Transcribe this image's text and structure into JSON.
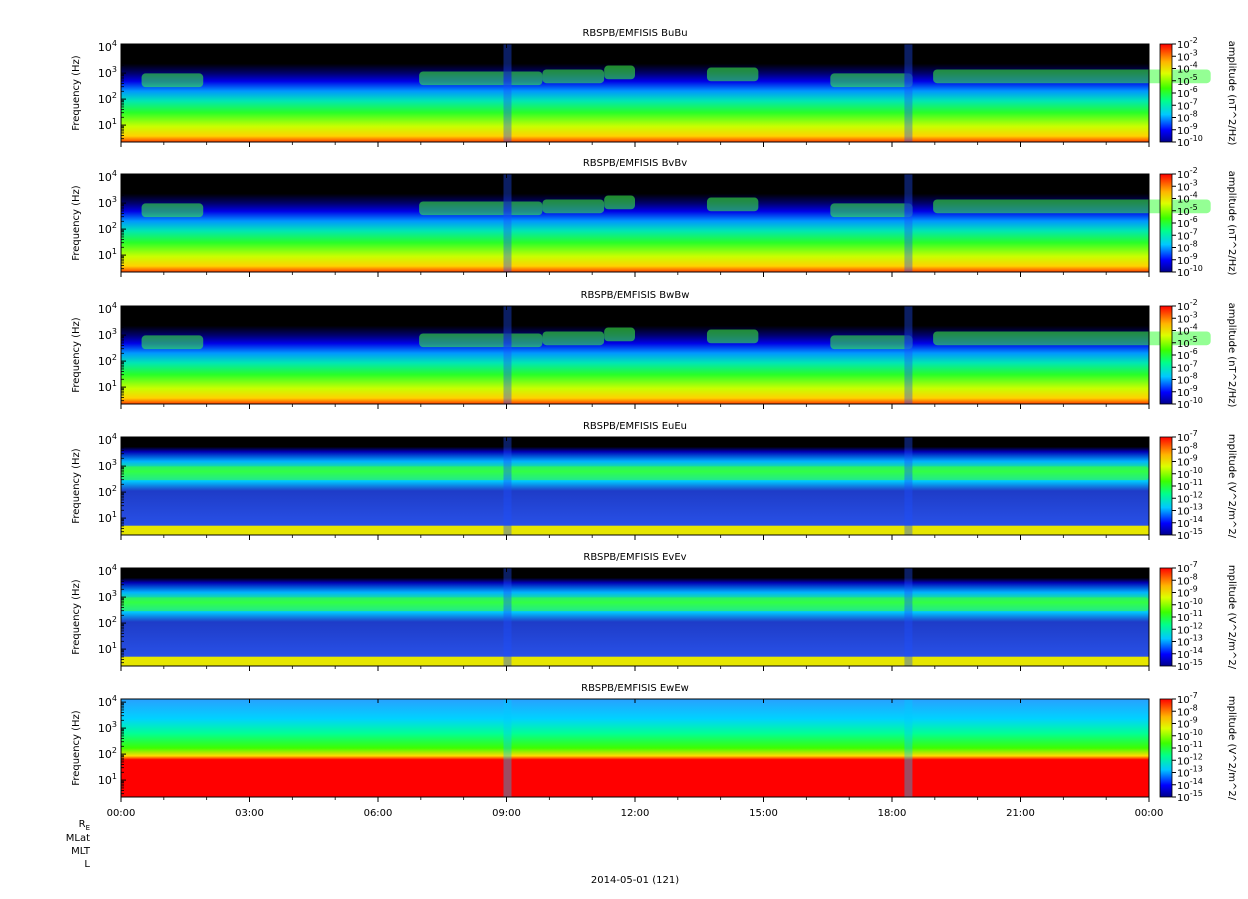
{
  "figure": {
    "date_label": "2014-05-01 (121)",
    "ephemeris_labels": [
      "R",
      "MLat",
      "MLT",
      "L"
    ],
    "ephemeris_subscript": "E"
  },
  "shared_x_ticks": [
    "00:00",
    "03:00",
    "06:00",
    "09:00",
    "12:00",
    "15:00",
    "18:00",
    "21:00",
    "00:00"
  ],
  "chart_data": [
    {
      "type": "heatmap",
      "title": "RBSPB/EMFISIS  BuBu",
      "ylabel": "Frequency (Hz)",
      "yscale": "log",
      "yticks": [
        {
          "base": "10",
          "exp": "1"
        },
        {
          "base": "10",
          "exp": "2"
        },
        {
          "base": "10",
          "exp": "3"
        },
        {
          "base": "10",
          "exp": "4"
        }
      ],
      "xrange": [
        "00:00",
        "00:00"
      ],
      "colorbar": {
        "label": "amplitude (nT^2/Hz)",
        "scale": "log",
        "ticks": [
          {
            "base": "10",
            "exp": "-2"
          },
          {
            "base": "10",
            "exp": "-3"
          },
          {
            "base": "10",
            "exp": "-4"
          },
          {
            "base": "10",
            "exp": "-5"
          },
          {
            "base": "10",
            "exp": "-6"
          },
          {
            "base": "10",
            "exp": "-7"
          },
          {
            "base": "10",
            "exp": "-8"
          },
          {
            "base": "10",
            "exp": "-9"
          },
          {
            "base": "10",
            "exp": "-10"
          }
        ]
      }
    },
    {
      "type": "heatmap",
      "title": "RBSPB/EMFISIS  BvBv",
      "ylabel": "Frequency (Hz)",
      "yscale": "log",
      "yticks": [
        {
          "base": "10",
          "exp": "1"
        },
        {
          "base": "10",
          "exp": "2"
        },
        {
          "base": "10",
          "exp": "3"
        },
        {
          "base": "10",
          "exp": "4"
        }
      ],
      "xrange": [
        "00:00",
        "00:00"
      ],
      "colorbar": {
        "label": "amplitude (nT^2/Hz)",
        "scale": "log",
        "ticks": [
          {
            "base": "10",
            "exp": "-2"
          },
          {
            "base": "10",
            "exp": "-3"
          },
          {
            "base": "10",
            "exp": "-4"
          },
          {
            "base": "10",
            "exp": "-5"
          },
          {
            "base": "10",
            "exp": "-6"
          },
          {
            "base": "10",
            "exp": "-7"
          },
          {
            "base": "10",
            "exp": "-8"
          },
          {
            "base": "10",
            "exp": "-9"
          },
          {
            "base": "10",
            "exp": "-10"
          }
        ]
      }
    },
    {
      "type": "heatmap",
      "title": "RBSPB/EMFISIS  BwBw",
      "ylabel": "Frequency (Hz)",
      "yscale": "log",
      "yticks": [
        {
          "base": "10",
          "exp": "1"
        },
        {
          "base": "10",
          "exp": "2"
        },
        {
          "base": "10",
          "exp": "3"
        },
        {
          "base": "10",
          "exp": "4"
        }
      ],
      "xrange": [
        "00:00",
        "00:00"
      ],
      "colorbar": {
        "label": "amplitude (nT^2/Hz)",
        "scale": "log",
        "ticks": [
          {
            "base": "10",
            "exp": "-2"
          },
          {
            "base": "10",
            "exp": "-3"
          },
          {
            "base": "10",
            "exp": "-4"
          },
          {
            "base": "10",
            "exp": "-5"
          },
          {
            "base": "10",
            "exp": "-6"
          },
          {
            "base": "10",
            "exp": "-7"
          },
          {
            "base": "10",
            "exp": "-8"
          },
          {
            "base": "10",
            "exp": "-9"
          },
          {
            "base": "10",
            "exp": "-10"
          }
        ]
      }
    },
    {
      "type": "heatmap",
      "title": "RBSPB/EMFISIS  EuEu",
      "ylabel": "Frequency (Hz)",
      "yscale": "log",
      "yticks": [
        {
          "base": "10",
          "exp": "1"
        },
        {
          "base": "10",
          "exp": "2"
        },
        {
          "base": "10",
          "exp": "3"
        },
        {
          "base": "10",
          "exp": "4"
        }
      ],
      "xrange": [
        "00:00",
        "00:00"
      ],
      "colorbar": {
        "label": "mplitude (V^2/m^2/",
        "scale": "log",
        "ticks": [
          {
            "base": "10",
            "exp": "-7"
          },
          {
            "base": "10",
            "exp": "-8"
          },
          {
            "base": "10",
            "exp": "-9"
          },
          {
            "base": "10",
            "exp": "-10"
          },
          {
            "base": "10",
            "exp": "-11"
          },
          {
            "base": "10",
            "exp": "-12"
          },
          {
            "base": "10",
            "exp": "-13"
          },
          {
            "base": "10",
            "exp": "-14"
          },
          {
            "base": "10",
            "exp": "-15"
          }
        ]
      }
    },
    {
      "type": "heatmap",
      "title": "RBSPB/EMFISIS  EvEv",
      "ylabel": "Frequency (Hz)",
      "yscale": "log",
      "yticks": [
        {
          "base": "10",
          "exp": "1"
        },
        {
          "base": "10",
          "exp": "2"
        },
        {
          "base": "10",
          "exp": "3"
        },
        {
          "base": "10",
          "exp": "4"
        }
      ],
      "xrange": [
        "00:00",
        "00:00"
      ],
      "colorbar": {
        "label": "mplitude (V^2/m^2/",
        "scale": "log",
        "ticks": [
          {
            "base": "10",
            "exp": "-7"
          },
          {
            "base": "10",
            "exp": "-8"
          },
          {
            "base": "10",
            "exp": "-9"
          },
          {
            "base": "10",
            "exp": "-10"
          },
          {
            "base": "10",
            "exp": "-11"
          },
          {
            "base": "10",
            "exp": "-12"
          },
          {
            "base": "10",
            "exp": "-13"
          },
          {
            "base": "10",
            "exp": "-14"
          },
          {
            "base": "10",
            "exp": "-15"
          }
        ]
      }
    },
    {
      "type": "heatmap",
      "title": "RBSPB/EMFISIS  EwEw",
      "ylabel": "Frequency (Hz)",
      "yscale": "log",
      "yticks": [
        {
          "base": "10",
          "exp": "1"
        },
        {
          "base": "10",
          "exp": "2"
        },
        {
          "base": "10",
          "exp": "3"
        },
        {
          "base": "10",
          "exp": "4"
        }
      ],
      "xrange": [
        "00:00",
        "00:00"
      ],
      "colorbar": {
        "label": "mplitude (V^2/m^2/",
        "scale": "log",
        "ticks": [
          {
            "base": "10",
            "exp": "-7"
          },
          {
            "base": "10",
            "exp": "-8"
          },
          {
            "base": "10",
            "exp": "-9"
          },
          {
            "base": "10",
            "exp": "-10"
          },
          {
            "base": "10",
            "exp": "-11"
          },
          {
            "base": "10",
            "exp": "-12"
          },
          {
            "base": "10",
            "exp": "-13"
          },
          {
            "base": "10",
            "exp": "-14"
          },
          {
            "base": "10",
            "exp": "-15"
          }
        ]
      }
    }
  ]
}
